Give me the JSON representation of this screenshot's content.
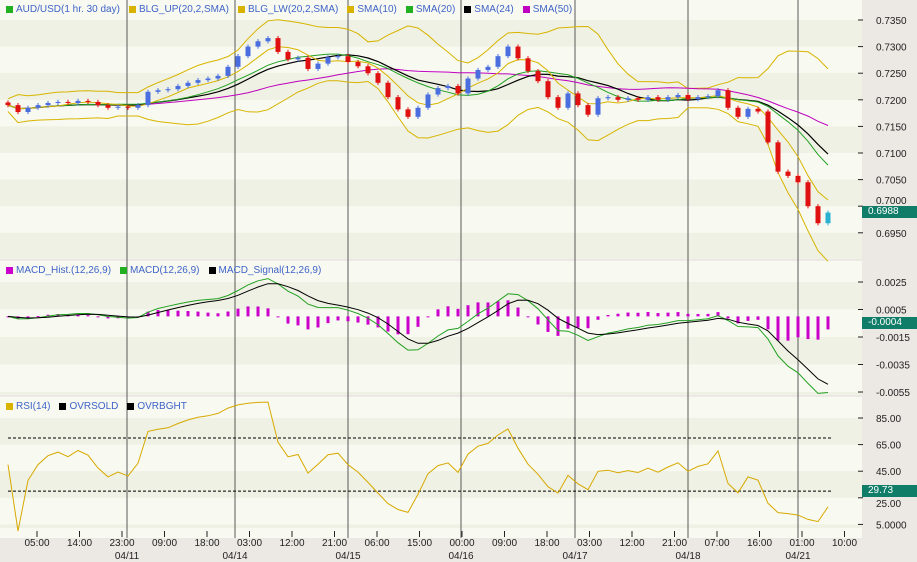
{
  "chart_data": [
    {
      "type": "candlestick",
      "title": "AUD/USD(1 hr. 30 day)",
      "legend": [
        {
          "label": "AUD/USD(1 hr. 30 day)",
          "color": "#22b022"
        },
        {
          "label": "BLG_UP(20,2,SMA)",
          "color": "#d8b400"
        },
        {
          "label": "BLG_LW(20,2,SMA)",
          "color": "#d8b400"
        },
        {
          "label": "SMA(10)",
          "color": "#d8b400"
        },
        {
          "label": "SMA(20)",
          "color": "#22b022"
        },
        {
          "label": "SMA(24)",
          "color": "#000000"
        },
        {
          "label": "SMA(50)",
          "color": "#c000c0"
        }
      ],
      "y_ticks": [
        "0.7350",
        "0.7300",
        "0.7250",
        "0.7200",
        "0.7150",
        "0.7100",
        "0.7050",
        "0.7000",
        "0.6950"
      ],
      "ylim": [
        0.69,
        0.7388
      ],
      "last_value": "0.6988",
      "close": [
        0.719,
        0.7177,
        0.7185,
        0.719,
        0.7194,
        0.7196,
        0.7194,
        0.7198,
        0.7196,
        0.719,
        0.7185,
        0.7187,
        0.7185,
        0.719,
        0.7215,
        0.7218,
        0.722,
        0.7226,
        0.7232,
        0.7237,
        0.724,
        0.7245,
        0.7262,
        0.7282,
        0.73,
        0.731,
        0.7316,
        0.729,
        0.7276,
        0.7279,
        0.7258,
        0.7268,
        0.728,
        0.7282,
        0.7271,
        0.7263,
        0.725,
        0.7232,
        0.7205,
        0.7182,
        0.7168,
        0.7185,
        0.721,
        0.7222,
        0.7226,
        0.7212,
        0.724,
        0.7256,
        0.7262,
        0.7282,
        0.73,
        0.7278,
        0.7254,
        0.7235,
        0.7205,
        0.7185,
        0.7212,
        0.719,
        0.7172,
        0.7203,
        0.7205,
        0.72,
        0.7203,
        0.72,
        0.7205,
        0.72,
        0.7205,
        0.7209,
        0.7201,
        0.7205,
        0.7207,
        0.7218,
        0.7185,
        0.7168,
        0.7183,
        0.7178,
        0.712,
        0.7065,
        0.7057,
        0.7045,
        0.7,
        0.6968,
        0.6988
      ],
      "up_color": "#4a6ee0",
      "down_color": "#e01010"
    },
    {
      "type": "line",
      "legend": [
        {
          "label": "MACD_Hist.(12,26,9)",
          "color": "#cc00cc"
        },
        {
          "label": "MACD(12,26,9)",
          "color": "#22b022"
        },
        {
          "label": "MACD_Signal(12,26,9)",
          "color": "#000000"
        }
      ],
      "y_ticks": [
        "0.0025",
        "0.0005",
        "-0.0015",
        "-0.0035",
        "-0.0055"
      ],
      "last_value": "-0.0004"
    },
    {
      "type": "line",
      "legend": [
        {
          "label": "RSI(14)",
          "color": "#d8b400"
        },
        {
          "label": "OVRSOLD",
          "color": "#000000"
        },
        {
          "label": "OVRBGHT",
          "color": "#000000"
        }
      ],
      "y_ticks": [
        "85.00",
        "65.00",
        "45.00",
        "25.00",
        "5.0000"
      ],
      "overbought": 70,
      "oversold": 30,
      "last_value": "29.73"
    }
  ],
  "x_axis": {
    "time_labels": [
      "05:00",
      "14:00",
      "23:00",
      "09:00",
      "18:00",
      "03:00",
      "12:00",
      "21:00",
      "06:00",
      "15:00",
      "00:00",
      "09:00",
      "18:00",
      "03:00",
      "12:00",
      "21:00",
      "07:00",
      "16:00",
      "01:00",
      "10:00"
    ],
    "date_labels": [
      "04/11",
      "04/14",
      "04/15",
      "04/16",
      "04/17",
      "04/18",
      "04/21"
    ]
  }
}
